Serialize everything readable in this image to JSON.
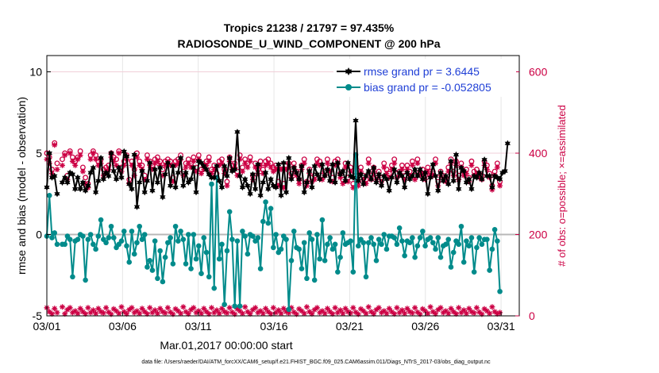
{
  "chart_data": {
    "type": "line",
    "title": "Tropics 21238 / 21797 = 97.435%",
    "subtitle": "RADIOSONDE_U_WIND_COMPONENT @ 200 hPa",
    "xlabel": "Mar.01,2017 00:00:00 start",
    "ylabel": "rmse and bias (model - observation)",
    "y2label": "# of obs: o=possible; ×=assimilated",
    "ylim": [
      -5,
      11
    ],
    "y2lim": [
      0,
      640
    ],
    "xlim": [
      0,
      31.2
    ],
    "x_ticks": [
      0,
      5,
      10,
      15,
      20,
      25,
      30
    ],
    "x_tick_labels": [
      "03/01",
      "03/06",
      "03/11",
      "03/16",
      "03/21",
      "03/26",
      "03/31"
    ],
    "y_ticks": [
      -5,
      0,
      5,
      10
    ],
    "y_tick_labels": [
      "-5",
      "0",
      "5",
      "10"
    ],
    "y2_ticks": [
      0,
      200,
      400,
      600
    ],
    "y2_tick_labels": [
      "0",
      "200",
      "400",
      "600"
    ],
    "grid": true,
    "legend_position": "top-right",
    "footer": "data file: /Users/raeder/DAI/ATM_forcXX/CAM6_setup/f.e21.FHIST_BGC.f09_025.CAM6assim.011/Diags_NTrS_2017-03/obs_diag_output.nc",
    "colors": {
      "rmse": "#000000",
      "bias": "#008b8b",
      "obs": "#cc0044",
      "zero_line": "#b8b8b8"
    },
    "series": [
      {
        "name": "rmse grand pr = 3.6445",
        "marker": "hexagram",
        "values": [
          2.9,
          5.0,
          3.5,
          3.6,
          2.5,
          null,
          3.2,
          3.5,
          3.2,
          3.8,
          3.7,
          2.8,
          3.5,
          2.8,
          3.2,
          2.7,
          3.0,
          3.8,
          4.1,
          2.6,
          3.3,
          4.7,
          3.4,
          3.8,
          3.6,
          5.0,
          3.9,
          3.4,
          4.1,
          3.5,
          5.1,
          4.8,
          3.1,
          2.8,
          4.9,
          1.7,
          3.2,
          3.9,
          2.6,
          3.3,
          4.4,
          2.7,
          4.0,
          3.2,
          4.1,
          2.3,
          3.7,
          4.4,
          3.0,
          4.2,
          2.9,
          3.8,
          4.7,
          3.0,
          3.8,
          3.2,
          3.4,
          4.1,
          2.6,
          4.5,
          4.4,
          4.2,
          4.0,
          3.7,
          3.5,
          3.5,
          4.2,
          3.3,
          2.9,
          4.2,
          3.6,
          4.7,
          3.9,
          4.0,
          6.3,
          3.6,
          2.9,
          3.4,
          3.0,
          2.5,
          3.7,
          2.8,
          4.3,
          2.4,
          3.2,
          3.8,
          2.8,
          3.4,
          3.0,
          2.9,
          4.3,
          2.4,
          4.4,
          2.6,
          4.7,
          3.4,
          4.1,
          3.8,
          3.4,
          4.2,
          2.6,
          3.2,
          3.9,
          2.9,
          4.2,
          3.7,
          3.4,
          4.3,
          3.6,
          4.0,
          3.3,
          4.3,
          3.2,
          4.4,
          3.7,
          3.9,
          3.3,
          4.4,
          3.6,
          3.5,
          7.0,
          3.3,
          3.7,
          3.1,
          3.6,
          3.9,
          3.4,
          4.1,
          3.2,
          3.7,
          3.0,
          3.6,
          3.4,
          2.7,
          3.5,
          4.0,
          3.2,
          3.8,
          3.6,
          2.9,
          3.8,
          3.4,
          3.6,
          4.0,
          3.6,
          4.0,
          3.4,
          3.8,
          2.5,
          3.5,
          4.3,
          3.6,
          2.7,
          3.8,
          3.3,
          3.6,
          3.1,
          4.5,
          3.3,
          4.9,
          2.8,
          4.1,
          3.9,
          3.2,
          3.4,
          2.8,
          3.6,
          3.5,
          3.8,
          3.4,
          4.6,
          3.6,
          3.6,
          2.9,
          3.6,
          3.5,
          3.4,
          3.8,
          3.9,
          5.6
        ]
      },
      {
        "name": "bias grand pr = -0.052805",
        "marker": "circle",
        "values": [
          -0.1,
          2.4,
          -0.2,
          0.1,
          -0.6,
          null,
          -0.6,
          -0.6,
          -0.1,
          -0.3,
          -2.6,
          -0.4,
          -0.3,
          0.0,
          -0.1,
          -2.8,
          -0.3,
          0.0,
          -0.6,
          -0.9,
          -0.1,
          0.9,
          -0.3,
          -0.5,
          -0.2,
          0.5,
          -0.2,
          -0.8,
          -0.6,
          -0.4,
          0.2,
          -0.7,
          -1.7,
          0.2,
          -1.2,
          -0.5,
          0.5,
          -0.3,
          0.0,
          -2.0,
          -1.6,
          -2.2,
          -0.4,
          -2.7,
          -1.0,
          -2.9,
          -1.4,
          -0.5,
          -0.2,
          -1.8,
          0.5,
          -0.4,
          0.2,
          -0.3,
          -1.8,
          0.0,
          -2.1,
          0.0,
          -1.5,
          -0.7,
          -2.4,
          -0.2,
          -1.1,
          -2.6,
          3.1,
          -3.3,
          3.5,
          -1.5,
          -0.6,
          -4.3,
          -1.0,
          1.4,
          -0.3,
          -4.4,
          -0.4,
          -4.4,
          0.2,
          -0.1,
          -1.2,
          0.0,
          -0.1,
          -0.4,
          -0.2,
          -2.1,
          0.8,
          2.0,
          0.7,
          1.6,
          -0.8,
          0.0,
          -1.1,
          -0.9,
          -0.1,
          -0.3,
          -4.6,
          -1.6,
          0.2,
          -0.8,
          -0.9,
          -2.1,
          -0.5,
          -2.7,
          0.1,
          -0.3,
          -2.8,
          0.0,
          -1.5,
          0.9,
          -1.6,
          -0.6,
          -0.2,
          -0.9,
          -0.6,
          -2.3,
          -1.4,
          0.1,
          -0.6,
          -0.5,
          -0.4,
          -2.3,
          4.9,
          -0.7,
          -0.3,
          -0.5,
          -2.6,
          -0.5,
          -0.2,
          -0.6,
          -1.6,
          -0.3,
          -0.6,
          0.0,
          -0.9,
          -0.1,
          -0.1,
          -0.2,
          -0.6,
          0.4,
          -0.4,
          -1.3,
          -0.4,
          -0.5,
          -0.2,
          -1.4,
          -0.7,
          -0.2,
          0.2,
          -0.7,
          -0.3,
          -0.2,
          -0.5,
          -0.9,
          -0.2,
          -1.4,
          -0.7,
          -0.6,
          -0.3,
          -2.0,
          -1.1,
          -0.4,
          -0.6,
          0.5,
          -1.7,
          -0.4,
          -0.7,
          -0.2,
          -2.3,
          -0.8,
          -0.2,
          -0.6,
          -0.3,
          -0.3,
          -2.2,
          -0.9,
          0.3,
          -0.4,
          -3.5
        ]
      },
      {
        "name": "# obs possible / assimilated (right axis)",
        "marker": "circle + asterisk",
        "values_possible": [
          400,
          390,
          360,
          425,
          375,
          null,
          385,
          400,
          345,
          405,
          390,
          380,
          390,
          405,
          365,
          340,
          325,
          395,
          405,
          395,
          380,
          385,
          360,
          365,
          370,
          400,
          390,
          385,
          405,
          365,
          380,
          395,
          335,
          380,
          360,
          400,
          380,
          370,
          345,
          395,
          380,
          370,
          385,
          390,
          380,
          360,
          380,
          385,
          380,
          340,
          380,
          385,
          395,
          355,
          375,
          385,
          375,
          390,
          365,
          395,
          360,
          370,
          380,
          390,
          360,
          370,
          350,
          380,
          385,
          360,
          330,
          390,
          370,
          375,
          355,
          395,
          365,
          385,
          375,
          390,
          345,
          375,
          360,
          380,
          360,
          380,
          385,
          375,
          365,
          370,
          330,
          370,
          325,
          370,
          375,
          350,
          375,
          355,
          335,
          370,
          385,
          330,
          360,
          340,
          345,
          385,
          380,
          345,
          355,
          385,
          365,
          340,
          380,
          385,
          350,
          335,
          375,
          340,
          365,
          325,
          345,
          330,
          365,
          345,
          335,
          385,
          345,
          365,
          345,
          355,
          340,
          375,
          360,
          350,
          370,
          385,
          350,
          355,
          370,
          345,
          370,
          355,
          380,
          345,
          385,
          355,
          360,
          345,
          365,
          355,
          355,
          385,
          330,
          355,
          345,
          340,
          365,
          385,
          355,
          380,
          345,
          375,
          355,
          360,
          340,
          380,
          355,
          360,
          350,
          345,
          380,
          370,
          350,
          320,
          355,
          375,
          330
        ],
        "values_assimilated": [
          385,
          375,
          350,
          420,
          360,
          null,
          370,
          395,
          335,
          400,
          380,
          370,
          385,
          395,
          355,
          325,
          315,
          385,
          400,
          385,
          370,
          375,
          345,
          355,
          360,
          390,
          380,
          370,
          400,
          355,
          370,
          385,
          325,
          370,
          345,
          390,
          370,
          360,
          335,
          385,
          370,
          360,
          375,
          380,
          370,
          345,
          370,
          375,
          370,
          330,
          370,
          375,
          385,
          345,
          365,
          375,
          365,
          380,
          355,
          385,
          350,
          360,
          370,
          380,
          350,
          360,
          340,
          370,
          375,
          350,
          320,
          380,
          360,
          365,
          345,
          385,
          355,
          375,
          365,
          380,
          335,
          365,
          350,
          370,
          350,
          370,
          375,
          365,
          355,
          360,
          320,
          360,
          315,
          360,
          365,
          340,
          365,
          345,
          325,
          360,
          375,
          320,
          350,
          330,
          335,
          375,
          370,
          335,
          345,
          375,
          355,
          330,
          370,
          375,
          340,
          325,
          365,
          330,
          355,
          315,
          335,
          320,
          355,
          335,
          325,
          375,
          335,
          355,
          335,
          345,
          330,
          365,
          350,
          340,
          360,
          375,
          340,
          345,
          360,
          335,
          360,
          345,
          370,
          335,
          375,
          345,
          350,
          335,
          355,
          345,
          345,
          375,
          320,
          345,
          335,
          330,
          355,
          375,
          345,
          370,
          335,
          365,
          345,
          350,
          330,
          370,
          345,
          350,
          340,
          335,
          370,
          360,
          340,
          310,
          345,
          365,
          320
        ],
        "values_possible_low": [
          20,
          10,
          5,
          18,
          8,
          null,
          22,
          5,
          15,
          20,
          8,
          12,
          6,
          18,
          10,
          5,
          20,
          8,
          14,
          6,
          18,
          10,
          7,
          20,
          9,
          4,
          17,
          12,
          6,
          22,
          10,
          5,
          15,
          20,
          8,
          12,
          6,
          18,
          10,
          5,
          20,
          8,
          14,
          6,
          18,
          10,
          7,
          20,
          9,
          4,
          17,
          12,
          6,
          22,
          10,
          5,
          15,
          20,
          8,
          12,
          6,
          18,
          10,
          5,
          20,
          8,
          14,
          6,
          18,
          10,
          7,
          20,
          9,
          4,
          17,
          12,
          6,
          22,
          10,
          5,
          15,
          20,
          8,
          12,
          6,
          18,
          10,
          5,
          20,
          8,
          14,
          6,
          18,
          10,
          7,
          20,
          9,
          4,
          17,
          12,
          6,
          22,
          10,
          5,
          15,
          20,
          8,
          12,
          6,
          18,
          10,
          5,
          20,
          8,
          14,
          6,
          18,
          10,
          7,
          20,
          9,
          4,
          17,
          12,
          6,
          22,
          10,
          5,
          15,
          20,
          8,
          12,
          6,
          18,
          10,
          5,
          20,
          8,
          14,
          6,
          18,
          10,
          7,
          20,
          9,
          4,
          17,
          12,
          6,
          22,
          10,
          5,
          15,
          20,
          8,
          12,
          6,
          18,
          10,
          5,
          20,
          8,
          14,
          6,
          18,
          10,
          7,
          20,
          9,
          4,
          17,
          12,
          6,
          22,
          10,
          5,
          8
        ]
      }
    ]
  }
}
